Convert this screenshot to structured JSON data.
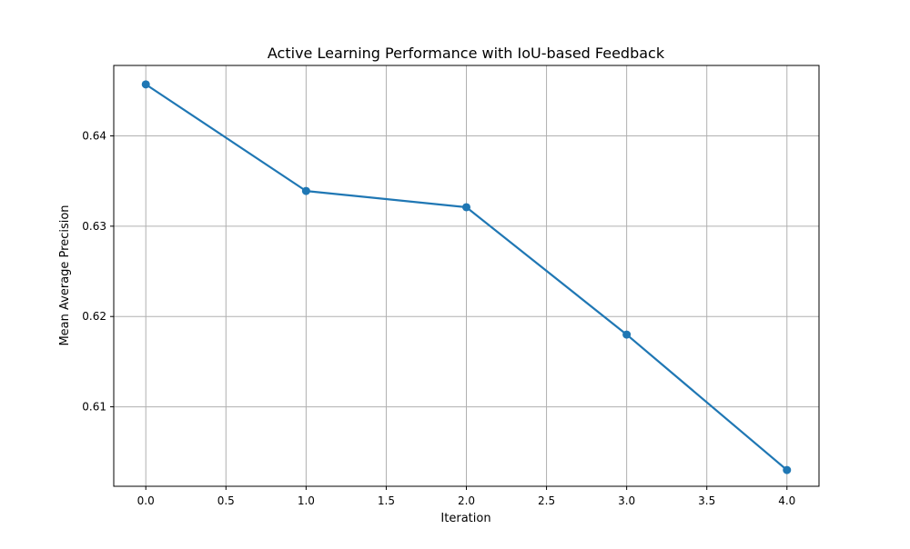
{
  "chart_data": {
    "type": "line",
    "title": "Active Learning Performance with IoU-based Feedback",
    "xlabel": "Iteration",
    "ylabel": "Mean Average Precision",
    "xlim": [
      -0.2,
      4.2
    ],
    "ylim": [
      0.6012,
      0.6478
    ],
    "x_ticks": [
      0.0,
      0.5,
      1.0,
      1.5,
      2.0,
      2.5,
      3.0,
      3.5,
      4.0
    ],
    "x_tick_labels": [
      "0.0",
      "0.5",
      "1.0",
      "1.5",
      "2.0",
      "2.5",
      "3.0",
      "3.5",
      "4.0"
    ],
    "y_ticks": [
      0.61,
      0.62,
      0.63,
      0.64
    ],
    "y_tick_labels": [
      "0.61",
      "0.62",
      "0.63",
      "0.64"
    ],
    "grid": true,
    "legend": false,
    "series": [
      {
        "color": "#1f77b4",
        "marker": "circle",
        "x": [
          0,
          1,
          2,
          3,
          4
        ],
        "y": [
          0.6457,
          0.6339,
          0.6321,
          0.618,
          0.603
        ]
      }
    ]
  },
  "colors": {
    "grid": "#b0b0b0",
    "axes": "#000000",
    "line": "#1f77b4"
  }
}
